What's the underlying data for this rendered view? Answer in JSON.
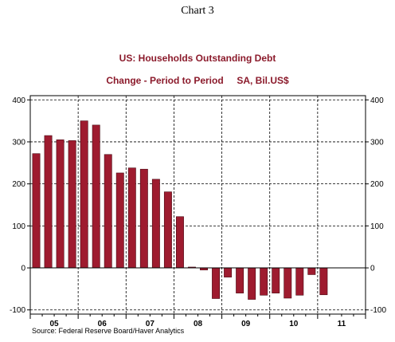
{
  "header": {
    "chart_number": "Chart 3",
    "title": "US: Households Outstanding Debt",
    "subtitle": "Change - Period to Period     SA, Bil.US$"
  },
  "footer": {
    "source": "Source:  Federal Reserve Board/Haver Analytics"
  },
  "colors": {
    "bar": "#9e1b2f",
    "bar_edge": "#4a0a14",
    "title": "#8b1a2b"
  },
  "chart_data": {
    "type": "bar",
    "title": "US: Households Outstanding Debt",
    "subtitle": "Change - Period to Period     SA, Bil.US$",
    "xlabel": "",
    "ylabel": "",
    "ylim": [
      -110,
      410
    ],
    "yticks": [
      -100,
      0,
      100,
      200,
      300,
      400
    ],
    "ytick_labels": [
      "-100",
      "0",
      "100",
      "200",
      "300",
      "400"
    ],
    "x_axis_labels": [
      "05",
      "06",
      "07",
      "08",
      "09",
      "10",
      "11"
    ],
    "bars_per_year": 4,
    "grid": true,
    "grid_style": "dashed",
    "series": [
      {
        "values": [
          272,
          315,
          305,
          303,
          350,
          340,
          270,
          226,
          238,
          235,
          211,
          181,
          122,
          2,
          -5,
          -73,
          -22,
          -60,
          -75,
          -65,
          -60,
          -72,
          -65,
          -16,
          -64
        ]
      }
    ]
  }
}
